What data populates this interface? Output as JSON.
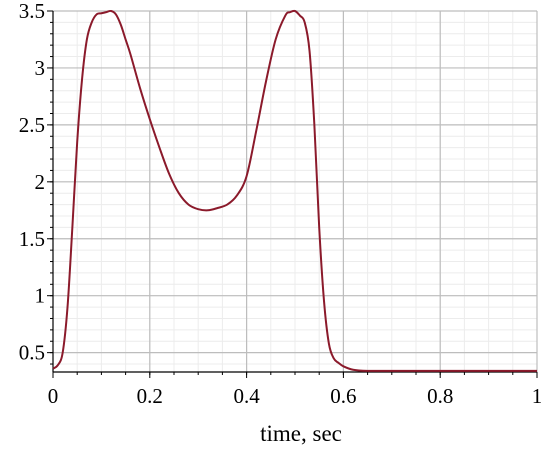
{
  "chart_data": {
    "type": "line",
    "title": "",
    "xlabel": "time, sec",
    "ylabel": "",
    "xlim": [
      0,
      1
    ],
    "ylim": [
      0.33,
      3.5
    ],
    "x_ticks": [
      0,
      0.2,
      0.4,
      0.6,
      0.8,
      1
    ],
    "x_tick_labels": [
      "0",
      "0.2",
      "0.4",
      "0.6",
      "0.8",
      "1"
    ],
    "y_ticks": [
      0.5,
      1,
      1.5,
      2,
      2.5,
      3,
      3.5
    ],
    "y_tick_labels": [
      "0.5",
      "1",
      "1.5",
      "2",
      "2.5",
      "3",
      "3.5"
    ],
    "grid": true,
    "colors": {
      "line": "#8b1a2b",
      "grid_major": "#bdbdbd",
      "grid_minor": "#ececec",
      "axis": "#000000"
    },
    "series": [
      {
        "x": [
          0,
          0.01,
          0.02,
          0.03,
          0.04,
          0.05,
          0.06,
          0.07,
          0.08,
          0.09,
          0.1,
          0.11,
          0.12,
          0.13,
          0.14,
          0.15,
          0.16,
          0.18,
          0.2,
          0.22,
          0.24,
          0.26,
          0.28,
          0.3,
          0.32,
          0.34,
          0.36,
          0.38,
          0.4,
          0.42,
          0.44,
          0.46,
          0.48,
          0.49,
          0.5,
          0.51,
          0.52,
          0.53,
          0.54,
          0.55,
          0.56,
          0.57,
          0.58,
          0.59,
          0.6,
          0.62,
          0.65,
          0.7,
          0.8,
          0.9,
          1.0
        ],
        "y": [
          0.36,
          0.39,
          0.5,
          0.9,
          1.6,
          2.35,
          2.9,
          3.25,
          3.4,
          3.47,
          3.48,
          3.49,
          3.5,
          3.47,
          3.38,
          3.25,
          3.12,
          2.82,
          2.55,
          2.3,
          2.07,
          1.9,
          1.8,
          1.76,
          1.75,
          1.77,
          1.8,
          1.88,
          2.05,
          2.45,
          2.88,
          3.25,
          3.46,
          3.49,
          3.5,
          3.46,
          3.4,
          3.15,
          2.5,
          1.6,
          0.95,
          0.58,
          0.45,
          0.41,
          0.38,
          0.35,
          0.34,
          0.34,
          0.34,
          0.34,
          0.34
        ]
      }
    ]
  }
}
